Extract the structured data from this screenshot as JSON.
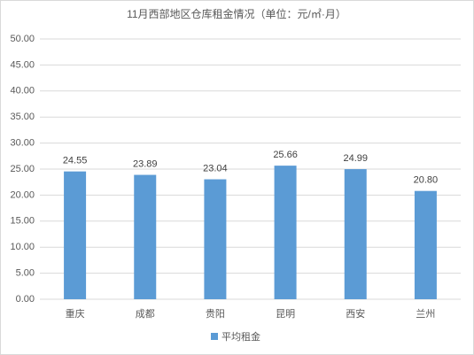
{
  "chart_data": {
    "type": "bar",
    "title": "11月西部地区仓库租金情况（单位：元/㎡·月）",
    "categories": [
      "重庆",
      "成都",
      "贵阳",
      "昆明",
      "西安",
      "兰州"
    ],
    "series": [
      {
        "name": "平均租金",
        "color": "#5b9bd5",
        "values": [
          24.55,
          23.89,
          23.04,
          25.66,
          24.99,
          20.8
        ],
        "value_labels": [
          "24.55",
          "23.89",
          "23.04",
          "25.66",
          "24.99",
          "20.80"
        ]
      }
    ],
    "ylim": [
      0,
      50
    ],
    "yticks": [
      {
        "value": 0,
        "label": "0.00"
      },
      {
        "value": 5,
        "label": "5.00"
      },
      {
        "value": 10,
        "label": "10.00"
      },
      {
        "value": 15,
        "label": "15.00"
      },
      {
        "value": 20,
        "label": "20.00"
      },
      {
        "value": 25,
        "label": "25.00"
      },
      {
        "value": 30,
        "label": "30.00"
      },
      {
        "value": 35,
        "label": "35.00"
      },
      {
        "value": 40,
        "label": "40.00"
      },
      {
        "value": 45,
        "label": "45.00"
      },
      {
        "value": 50,
        "label": "50.00"
      }
    ],
    "grid": true,
    "legend": "bottom"
  }
}
